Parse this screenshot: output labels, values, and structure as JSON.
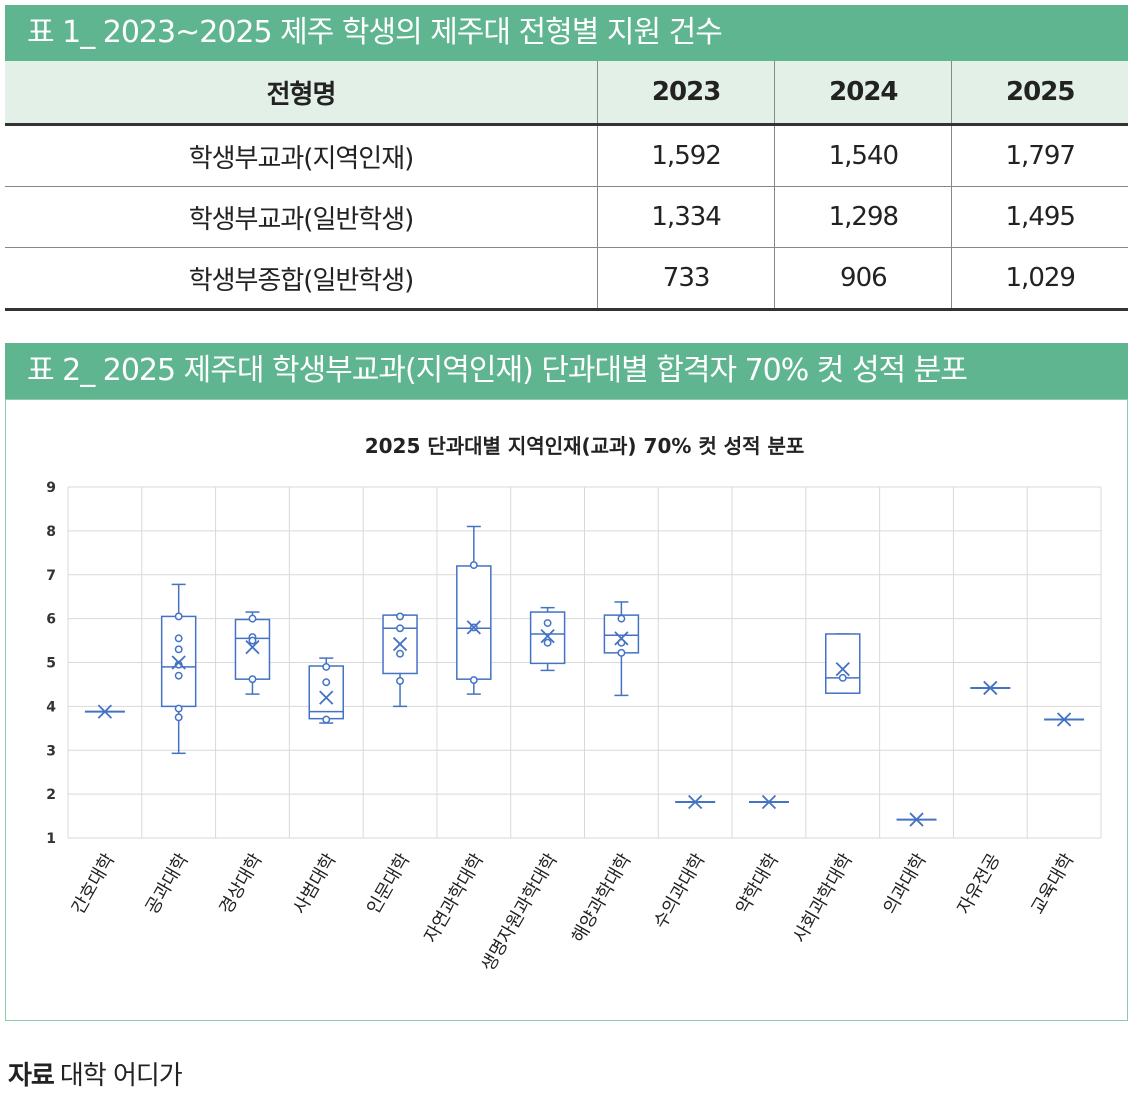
{
  "table1": {
    "title": "표 1_ 2023~2025 제주 학생의 제주대 전형별 지원 건수",
    "headers": [
      "전형명",
      "2023",
      "2024",
      "2025"
    ],
    "rows": [
      [
        "학생부교과(지역인재)",
        "1,592",
        "1,540",
        "1,797"
      ],
      [
        "학생부교과(일반학생)",
        "1,334",
        "1,298",
        "1,495"
      ],
      [
        "학생부종합(일반학생)",
        "733",
        "906",
        "1,029"
      ]
    ]
  },
  "table2": {
    "title": "표 2_ 2025 제주대 학생부교과(지역인재) 단과대별 합격자 70% 컷 성적 분포"
  },
  "chart_data": {
    "type": "boxplot",
    "title": "2025 단과대별 지역인재(교과) 70% 컷 성적 분포",
    "xlabel": "",
    "ylabel": "",
    "ylim": [
      1,
      9
    ],
    "yticks": [
      "1",
      "2",
      "3",
      "4",
      "5",
      "6",
      "7",
      "8",
      "9"
    ],
    "grid": true,
    "color": "#4472c4",
    "categories": [
      "간호대학",
      "공과대학",
      "경상대학",
      "사범대학",
      "인문대학",
      "자연과학대학",
      "생명자원과학대학",
      "해양과학대학",
      "수의과대학",
      "약학대학",
      "사회과학대학",
      "의과대학",
      "자유전공",
      "교육대학"
    ],
    "boxes": [
      {
        "name": "간호대학",
        "min": 3.88,
        "q1": 3.88,
        "median": 3.88,
        "q3": 3.88,
        "max": 3.88,
        "mean": 3.88,
        "points": []
      },
      {
        "name": "공과대학",
        "min": 2.93,
        "q1": 4.0,
        "median": 4.9,
        "q3": 6.05,
        "max": 6.78,
        "mean": 5.0,
        "points": [
          6.05,
          5.55,
          5.3,
          4.95,
          4.7,
          3.95,
          3.75
        ]
      },
      {
        "name": "경상대학",
        "min": 4.28,
        "q1": 4.62,
        "median": 5.55,
        "q3": 5.98,
        "max": 6.15,
        "mean": 5.35,
        "points": [
          6.0,
          5.58,
          5.5,
          4.62
        ]
      },
      {
        "name": "사범대학",
        "min": 3.62,
        "q1": 3.72,
        "median": 3.88,
        "q3": 4.92,
        "max": 5.1,
        "mean": 4.2,
        "points": [
          4.9,
          4.55,
          3.7
        ]
      },
      {
        "name": "인문대학",
        "min": 4.0,
        "q1": 4.75,
        "median": 5.78,
        "q3": 6.08,
        "max": 6.08,
        "mean": 5.42,
        "points": [
          6.05,
          5.78,
          5.2,
          4.58
        ]
      },
      {
        "name": "자연과학대학",
        "min": 4.28,
        "q1": 4.62,
        "median": 5.78,
        "q3": 7.2,
        "max": 8.1,
        "mean": 5.8,
        "points": [
          7.22,
          5.8,
          4.6
        ]
      },
      {
        "name": "생명자원과학대학",
        "min": 4.82,
        "q1": 4.98,
        "median": 5.65,
        "q3": 6.15,
        "max": 6.25,
        "mean": 5.6,
        "points": [
          5.9,
          5.45
        ]
      },
      {
        "name": "해양과학대학",
        "min": 4.25,
        "q1": 5.22,
        "median": 5.62,
        "q3": 6.08,
        "max": 6.38,
        "mean": 5.55,
        "points": [
          6.0,
          5.45,
          5.22
        ]
      },
      {
        "name": "수의과대학",
        "min": 1.82,
        "q1": 1.82,
        "median": 1.82,
        "q3": 1.82,
        "max": 1.82,
        "mean": 1.82,
        "points": []
      },
      {
        "name": "약학대학",
        "min": 1.82,
        "q1": 1.82,
        "median": 1.82,
        "q3": 1.82,
        "max": 1.82,
        "mean": 1.82,
        "points": []
      },
      {
        "name": "사회과학대학",
        "min": 4.3,
        "q1": 4.3,
        "median": 4.65,
        "q3": 5.65,
        "max": 5.65,
        "mean": 4.85,
        "points": [
          4.65
        ]
      },
      {
        "name": "의과대학",
        "min": 1.42,
        "q1": 1.42,
        "median": 1.42,
        "q3": 1.42,
        "max": 1.42,
        "mean": 1.42,
        "points": []
      },
      {
        "name": "자유전공",
        "min": 4.42,
        "q1": 4.42,
        "median": 4.42,
        "q3": 4.42,
        "max": 4.42,
        "mean": 4.42,
        "points": []
      },
      {
        "name": "교육대학",
        "min": 3.7,
        "q1": 3.7,
        "median": 3.7,
        "q3": 3.7,
        "max": 3.7,
        "mean": 3.7,
        "points": []
      }
    ]
  },
  "source": {
    "label": "자료",
    "text": "대학 어디가"
  }
}
